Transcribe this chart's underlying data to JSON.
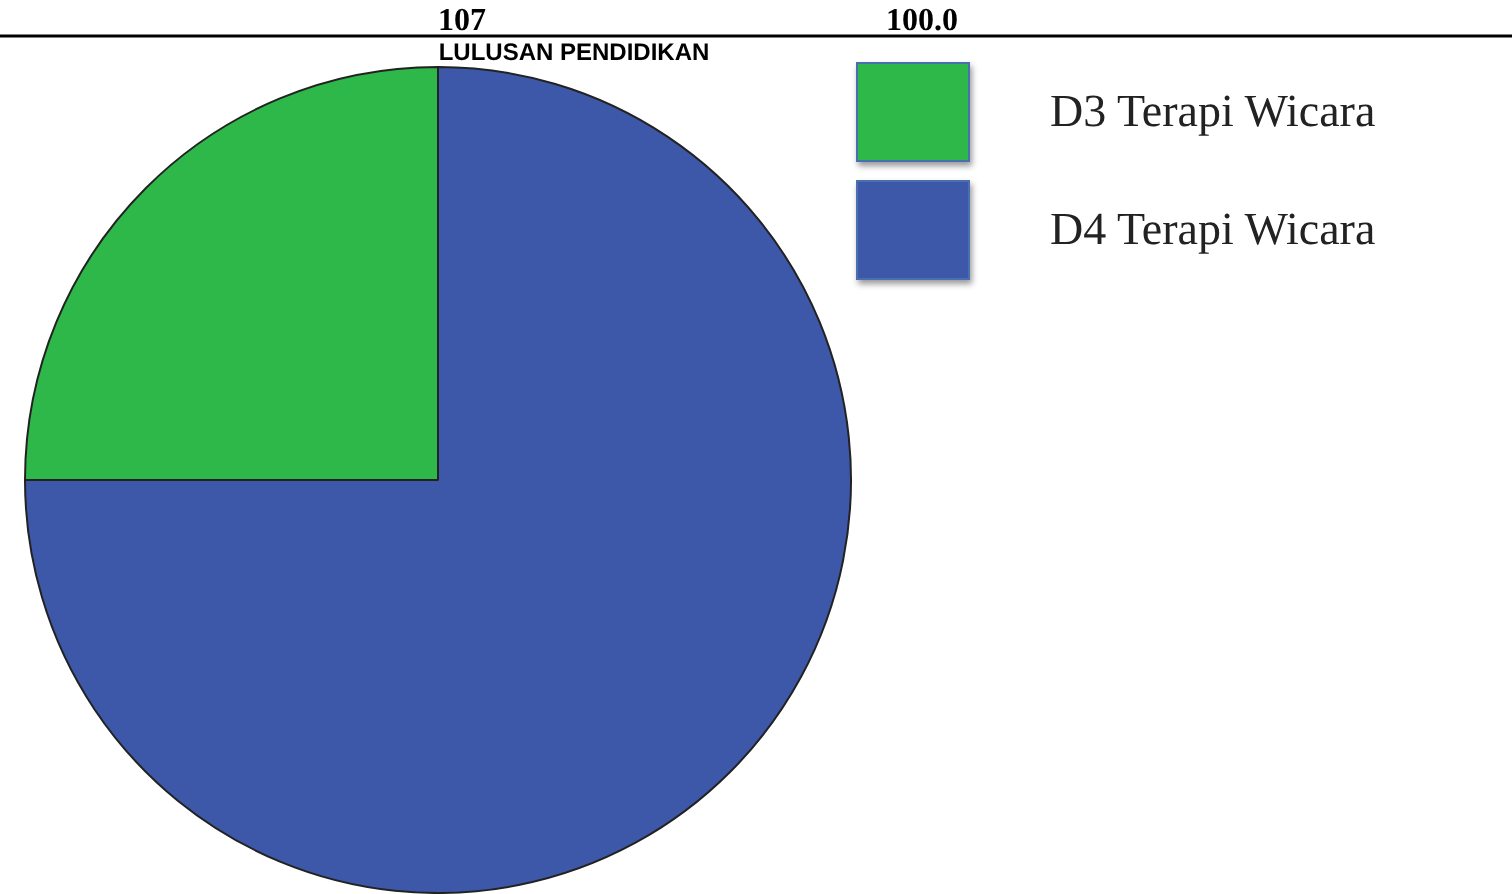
{
  "chart_data": {
    "type": "pie",
    "title": "LULUSAN PENDIDIKAN",
    "annotations": [
      "107",
      "100.0"
    ],
    "categories": [
      "D3 Terapi Wicara",
      "D4 Terapi Wicara"
    ],
    "values": [
      25,
      75
    ],
    "colors": [
      "#2eb84a",
      "#3d58a8"
    ],
    "legend": "top right"
  }
}
